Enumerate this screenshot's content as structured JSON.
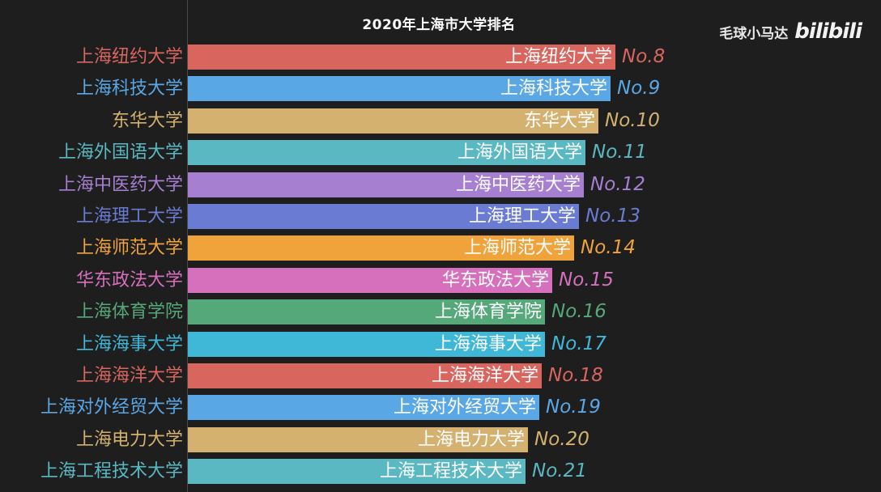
{
  "chart_data": {
    "type": "bar",
    "title": "2020年上海市大学排名",
    "orientation": "horizontal",
    "categories": [
      "上海纽约大学",
      "上海科技大学",
      "东华大学",
      "上海外国语大学",
      "上海中医药大学",
      "上海理工大学",
      "上海师范大学",
      "华东政法大学",
      "上海体育学院",
      "上海海事大学",
      "上海海洋大学",
      "上海对外经贸大学",
      "上海电力大学",
      "上海工程技术大学"
    ],
    "ranks": [
      "No.8",
      "No.9",
      "No.10",
      "No.11",
      "No.12",
      "No.13",
      "No.14",
      "No.15",
      "No.16",
      "No.17",
      "No.18",
      "No.19",
      "No.20",
      "No.21"
    ],
    "values": [
      528,
      522,
      507,
      491,
      489,
      483,
      477,
      450,
      441,
      441,
      437,
      434,
      420,
      417
    ],
    "colors": [
      "#d9655f",
      "#5aa7e6",
      "#d4b16f",
      "#5ab8c2",
      "#a77fd1",
      "#6a7bd4",
      "#f0a33a",
      "#d670bd",
      "#55a87a",
      "#3fb8d8",
      "#d9655f",
      "#5aa7e6",
      "#d4b16f",
      "#5ab8c2"
    ],
    "xlim": [
      0,
      620
    ],
    "grid": false,
    "legend": "none"
  },
  "watermark": {
    "author": "毛球小马达",
    "logo": "bilibili"
  }
}
